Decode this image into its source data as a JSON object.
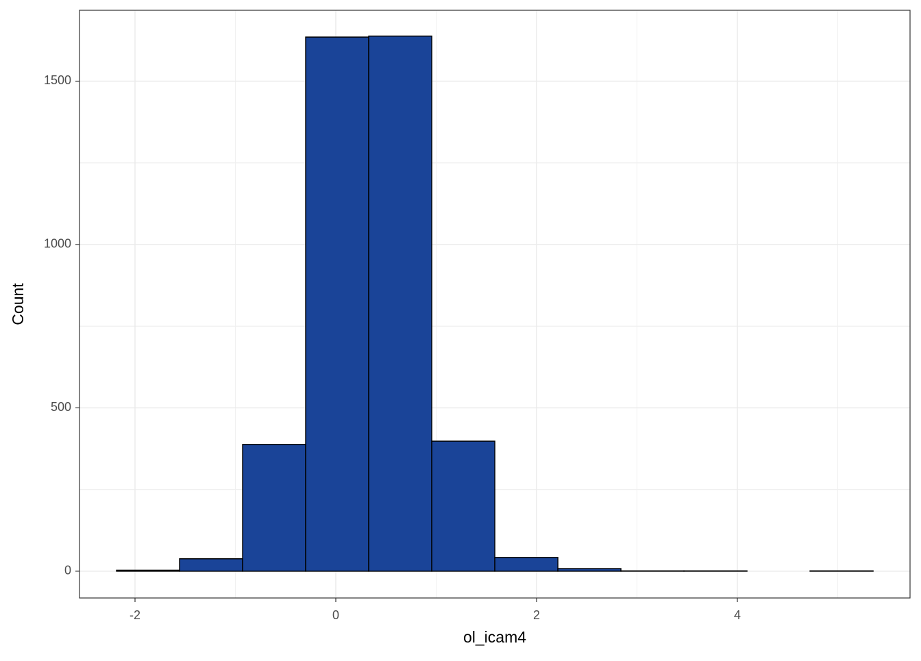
{
  "chart_data": {
    "type": "histogram",
    "x_label": "ol_icam4",
    "y_label": "Count",
    "bins": [
      -2.184,
      -1.556,
      -0.928,
      -0.3,
      0.328,
      0.956,
      1.584,
      2.212,
      2.84,
      3.468,
      4.096,
      4.724,
      5.352
    ],
    "values": [
      3,
      38,
      388,
      1635,
      1638,
      398,
      42,
      8,
      1,
      1,
      0,
      1
    ],
    "color": "#1a4498",
    "edge_color": "#000000",
    "xlim": [
      -2.553,
      5.72
    ],
    "xticks": [
      -2,
      0,
      2,
      4
    ],
    "ylim": [
      -82,
      1717
    ],
    "yticks": [
      0,
      500,
      1000,
      1500
    ],
    "grid": true
  }
}
